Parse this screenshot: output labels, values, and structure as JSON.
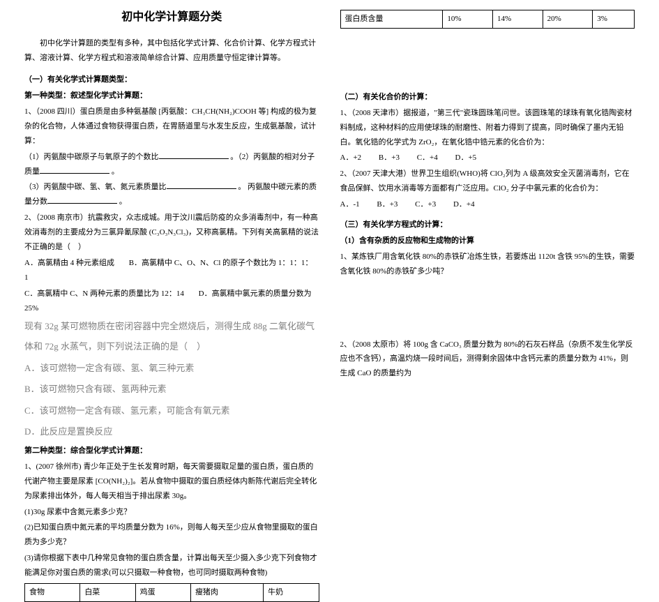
{
  "title": "初中化学计算题分类",
  "intro": "初中化学计算题的类型有多种，其中包括化学式计算、化合价计算、化学方程式计算、溶液计算、化学方程式和溶液简单综合计算、应用质量守恒定律计算等。",
  "sec1": "（一）有关化学式计算题类型：",
  "type1": "第一种类型：叙述型化学式计算题：",
  "q1a": "1、（2008 四川）蛋白质是由多种氨基酸 [丙氨酸：CH₃CH(NH₂)COOH 等] 构成的极为复杂的化合物，人体通过食物获得蛋白质，在胃肠道里与水发生反应，生成氨基酸，试计算：",
  "q1b_1": "（1）丙氨酸中碳原子与氧原子的个数比",
  "q1b_2": "。（2）丙氨酸的相对分子质量",
  "q1b_3": "。",
  "q1c_1": "（3）丙氨酸中碳、氢、氧、氮元素质量比",
  "q1c_2": "。 丙氨酸中碳元素的质量分数",
  "q1c_3": "。",
  "q2a": "2、（2008 南京市）抗震救灾，众志成城。用于汶川震后防疫的众多消毒剂中，有一种高效消毒剂的主要成分为三氯异氰尿酸 (C₃O₃N₃Cl₃)，又称高氯精。下列有关高氯精的说法不正确的是（　）",
  "q2b": "A．高氯精由 4 种元素组成",
  "q2c": "B．高氯精中 C、O、N、Cl 的原子个数比为 1：1：1：1",
  "q2d": "C．高氯精中 C、N 两种元素的质量比为 12：14",
  "q2e": "D．高氯精中氯元素的质量分数为 25%",
  "gray1": "现有 32g 某可燃物质在密闭容器中完全燃烧后，测得生成 88g 二氧化碳气体和 72g 水蒸气，则下列说法正确的是（　）",
  "grayA": "A．该可燃物一定含有碳、氢、氧三种元素",
  "grayB": "B．该可燃物只含有碳、氢两种元素",
  "grayC": "C．该可燃物一定含有碳、氢元素，可能含有氧元素",
  "grayD": "D．此反应是置换反应",
  "type2": "第二种类型：综合型化学式计算题：",
  "q3a": "1、(2007 徐州市) 青少年正处于生长发育时期，每天需要摄取足量的蛋白质，蛋白质的代谢产物主要是尿素 [CO(NH₂)₂]。若从食物中摄取的蛋白质经体内新陈代谢后完全转化为尿素排出体外，每人每天相当于排出尿素 30g。",
  "q3b": "(1)30g 尿素中含氮元素多少克？",
  "q3c": "(2)已知蛋白质中氮元素的平均质量分数为 16%，则每人每天至少应从食物里摄取的蛋白质为多少克？",
  "q3d": "(3)请你根据下表中几种常见食物的蛋白质含量，计算出每天至少摄入多少克下列食物才能满足你对蛋白质的需求(可以只摄取一种食物，也可同时摄取两种食物)",
  "table1_headers": [
    "食物",
    "白菜",
    "鸡蛋",
    "瘦猪肉",
    "牛奶"
  ],
  "table2_label": "蛋白质含量",
  "table2_vals": [
    "10%",
    "14%",
    "20%",
    "3%"
  ],
  "sec2": "（二）有关化合价的计算：",
  "r1a": "1、（2008 天津市）据报道，\"第三代\"瓷珠圆珠笔问世。该圆珠笔的球珠有氧化锆陶瓷材料制成，这种材料的应用使球珠的耐磨性、附着力得到了提高，同时确保了墨内无铅白。氧化锆的化学式为 ZrO₂，在氧化锆中锆元素的化合价为：",
  "r1b": {
    "a": "A．+2",
    "b": "B．+3",
    "c": "C．+4",
    "d": "D．+5"
  },
  "r2a": "2、（2007 天津大港）世界卫生组织(WHO)将 ClO₂列为 A 级高效安全灭菌消毒剂，它在食品保鲜、饮用水消毒等方面都有广泛应用。ClO₂ 分子中氯元素的化合价为：",
  "r2b": {
    "a": "A．-1",
    "b": "B．+3",
    "c": "C．+3",
    "d": "D．+4"
  },
  "sec3": "（三）有关化学方程式的计算：",
  "sec3sub": "（1）含有杂质的反应物和生成物的计算",
  "r3": "1、某炼铁厂用含氧化铁 80%的赤铁矿冶炼生铁，若要炼出 1120t 含铁 95%的生铁，需要含氧化铁 80%的赤铁矿多少吨？",
  "r4": "2、（2008 太原市）将 100g 含 CaCO₃ 质量分数为 80%的石灰石样品（杂质不发生化学反应也不含钙），高温灼烧一段时间后，测得剩余固体中含钙元素的质量分数为 41%，则生成 CaO 的质量约为"
}
